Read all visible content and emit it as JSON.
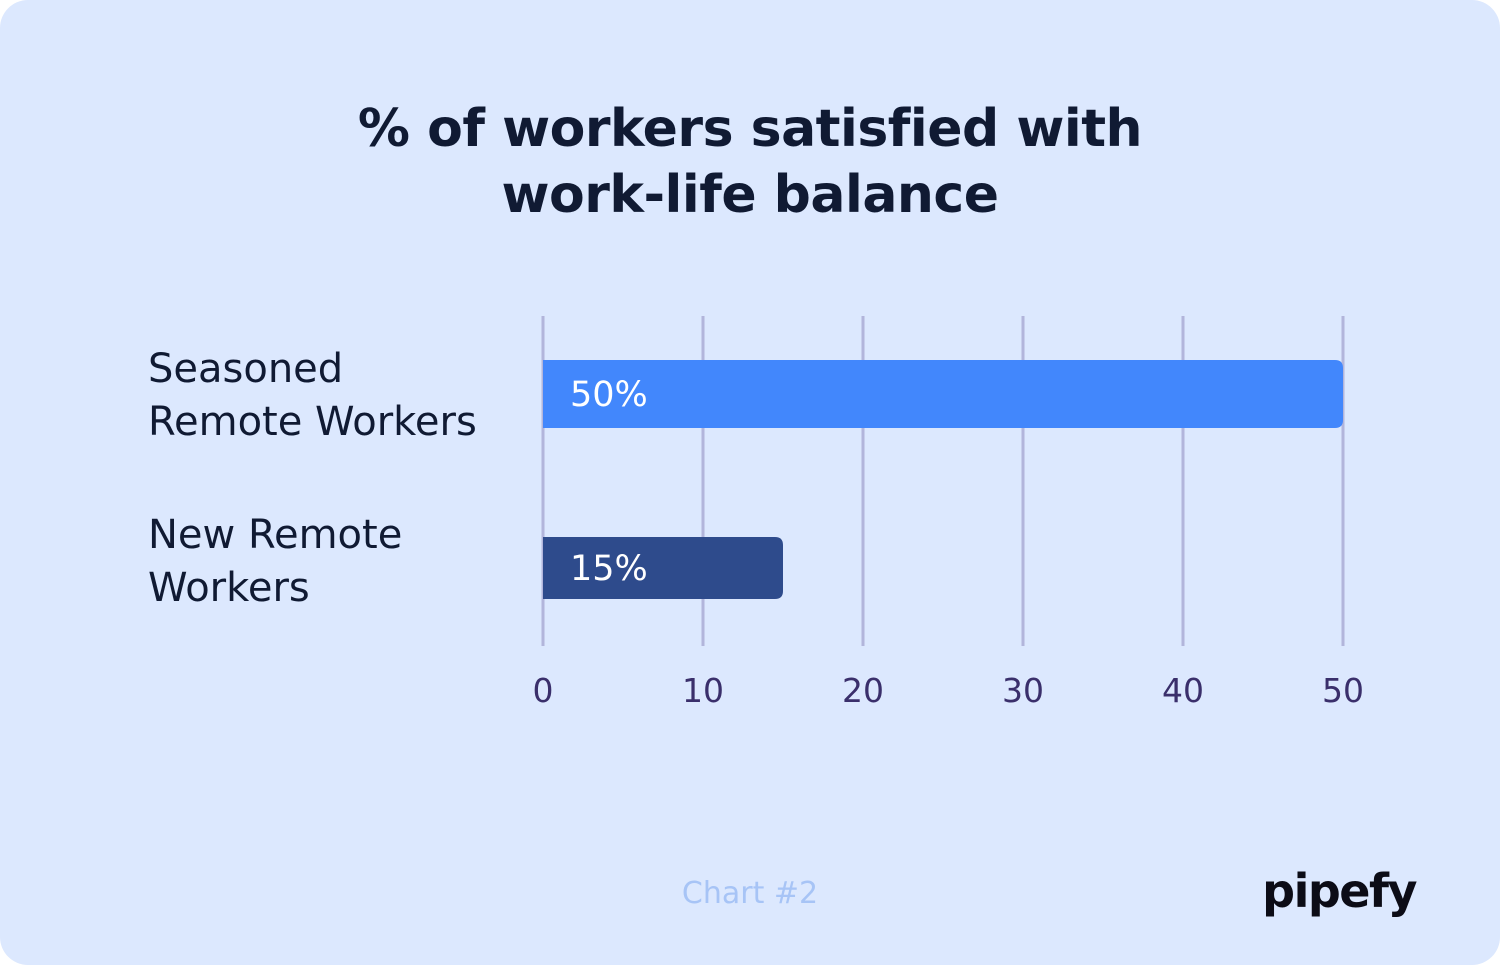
{
  "chart_data": {
    "type": "bar",
    "orientation": "horizontal",
    "title_lines": [
      "% of workers satisfied with",
      "work-life balance"
    ],
    "categories": [
      [
        "Seasoned",
        "Remote Workers"
      ],
      [
        "New Remote",
        "Workers"
      ]
    ],
    "values": [
      50,
      15
    ],
    "data_labels": [
      "50%",
      "15%"
    ],
    "bar_colors": [
      "#4287fc",
      "#2e4b8c"
    ],
    "xlim": [
      0,
      50
    ],
    "xticks": [
      0,
      10,
      20,
      30,
      40,
      50
    ],
    "grid": true,
    "legend": false
  },
  "footer": {
    "chart_label": "Chart #2",
    "logo_text": "pipefy"
  },
  "colors": {
    "background": "#dce8fe",
    "gridline": "#b2b5db",
    "tick_label": "#3a2f6b",
    "data_label": "#ffffff"
  }
}
